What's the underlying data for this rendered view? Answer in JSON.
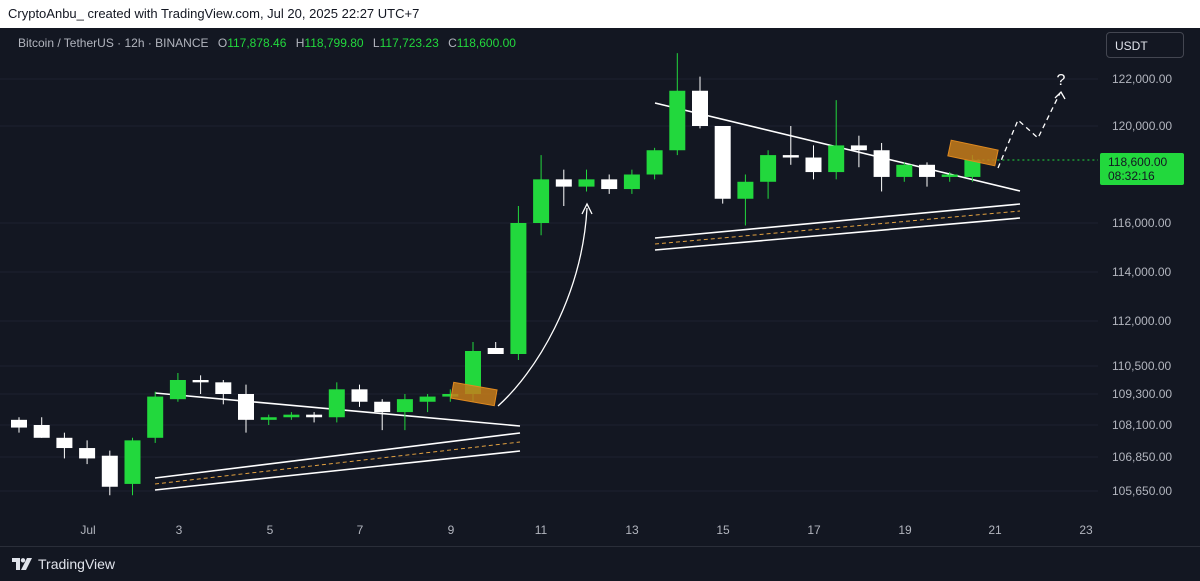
{
  "header": {
    "attribution": "CryptoAnbu_ created with TradingView.com, Jul 20, 2025 22:27 UTC+7"
  },
  "legend": {
    "symbol": "Bitcoin / TetherUS · 12h · BINANCE",
    "o_label": "O",
    "o_value": "117,878.46",
    "h_label": "H",
    "h_value": "118,799.80",
    "l_label": "L",
    "l_value": "117,723.23",
    "c_label": "C",
    "c_value": "118,600.00"
  },
  "currency": "USDT",
  "price_tag": {
    "price": "118,600.00",
    "countdown": "08:32:16"
  },
  "annotation": "?",
  "footer": {
    "brand": "TradingView"
  },
  "colors": {
    "background": "#131722",
    "up": "#22d83d",
    "down": "#ffffff",
    "price_tag": "#22d83d",
    "breakout_box": "#c77d1a"
  },
  "chart_data": {
    "type": "candlestick",
    "title": "Bitcoin / TetherUS · 12h · BINANCE",
    "xlabel": "",
    "ylabel": "",
    "x_ticks": [
      "Jul",
      "3",
      "5",
      "7",
      "9",
      "11",
      "13",
      "15",
      "17",
      "19",
      "21",
      "23"
    ],
    "y_ticks": [
      "122,000.00",
      "120,000.00",
      "116,000.00",
      "114,000.00",
      "112,000.00",
      "110,500.00",
      "109,300.00",
      "108,100.00",
      "106,850.00",
      "105,650.00"
    ],
    "y_range": [
      104800,
      123500
    ],
    "last_price": 118600,
    "candles": [
      {
        "o": 108300,
        "h": 108400,
        "l": 107800,
        "c": 108000
      },
      {
        "o": 108100,
        "h": 108400,
        "l": 107600,
        "c": 107600
      },
      {
        "o": 107600,
        "h": 107800,
        "l": 106800,
        "c": 107200
      },
      {
        "o": 107200,
        "h": 107500,
        "l": 106600,
        "c": 106800
      },
      {
        "o": 106900,
        "h": 107100,
        "l": 105500,
        "c": 105800
      },
      {
        "o": 105900,
        "h": 107600,
        "l": 105500,
        "c": 107500
      },
      {
        "o": 107600,
        "h": 109400,
        "l": 107400,
        "c": 109200
      },
      {
        "o": 109100,
        "h": 110200,
        "l": 109000,
        "c": 109900
      },
      {
        "o": 109900,
        "h": 110100,
        "l": 109300,
        "c": 109800
      },
      {
        "o": 109800,
        "h": 109900,
        "l": 108900,
        "c": 109300
      },
      {
        "o": 109300,
        "h": 109700,
        "l": 107800,
        "c": 108300
      },
      {
        "o": 108300,
        "h": 108500,
        "l": 108100,
        "c": 108400
      },
      {
        "o": 108400,
        "h": 108600,
        "l": 108300,
        "c": 108500
      },
      {
        "o": 108500,
        "h": 108600,
        "l": 108200,
        "c": 108400
      },
      {
        "o": 108400,
        "h": 109800,
        "l": 108200,
        "c": 109500
      },
      {
        "o": 109500,
        "h": 109700,
        "l": 108800,
        "c": 109000
      },
      {
        "o": 109000,
        "h": 109100,
        "l": 107900,
        "c": 108600
      },
      {
        "o": 108600,
        "h": 109300,
        "l": 107900,
        "c": 109100
      },
      {
        "o": 109000,
        "h": 109300,
        "l": 108600,
        "c": 109200
      },
      {
        "o": 109200,
        "h": 109500,
        "l": 109000,
        "c": 109300
      },
      {
        "o": 109300,
        "h": 111300,
        "l": 109000,
        "c": 111000
      },
      {
        "o": 111100,
        "h": 111300,
        "l": 110900,
        "c": 110900
      },
      {
        "o": 110900,
        "h": 116700,
        "l": 110700,
        "c": 116000
      },
      {
        "o": 116000,
        "h": 118800,
        "l": 115500,
        "c": 117800
      },
      {
        "o": 117800,
        "h": 118200,
        "l": 116700,
        "c": 117500
      },
      {
        "o": 117500,
        "h": 118200,
        "l": 117300,
        "c": 117800
      },
      {
        "o": 117800,
        "h": 118000,
        "l": 117200,
        "c": 117400
      },
      {
        "o": 117400,
        "h": 118200,
        "l": 117200,
        "c": 118000
      },
      {
        "o": 118000,
        "h": 119100,
        "l": 117800,
        "c": 119000
      },
      {
        "o": 119000,
        "h": 123100,
        "l": 118800,
        "c": 121500
      },
      {
        "o": 121500,
        "h": 122100,
        "l": 119900,
        "c": 120000
      },
      {
        "o": 120000,
        "h": 120000,
        "l": 116800,
        "c": 117000
      },
      {
        "o": 117000,
        "h": 118000,
        "l": 115900,
        "c": 117700
      },
      {
        "o": 117700,
        "h": 119000,
        "l": 117000,
        "c": 118800
      },
      {
        "o": 118800,
        "h": 120000,
        "l": 118400,
        "c": 118700
      },
      {
        "o": 118700,
        "h": 119200,
        "l": 117800,
        "c": 118100
      },
      {
        "o": 118100,
        "h": 121100,
        "l": 117800,
        "c": 119200
      },
      {
        "o": 119200,
        "h": 119600,
        "l": 118300,
        "c": 119000
      },
      {
        "o": 119000,
        "h": 119300,
        "l": 117300,
        "c": 117900
      },
      {
        "o": 117900,
        "h": 118500,
        "l": 117700,
        "c": 118400
      },
      {
        "o": 118400,
        "h": 118500,
        "l": 117500,
        "c": 117900
      },
      {
        "o": 117900,
        "h": 118100,
        "l": 117700,
        "c": 118000
      },
      {
        "o": 117900,
        "h": 118800,
        "l": 117700,
        "c": 118600
      }
    ]
  }
}
